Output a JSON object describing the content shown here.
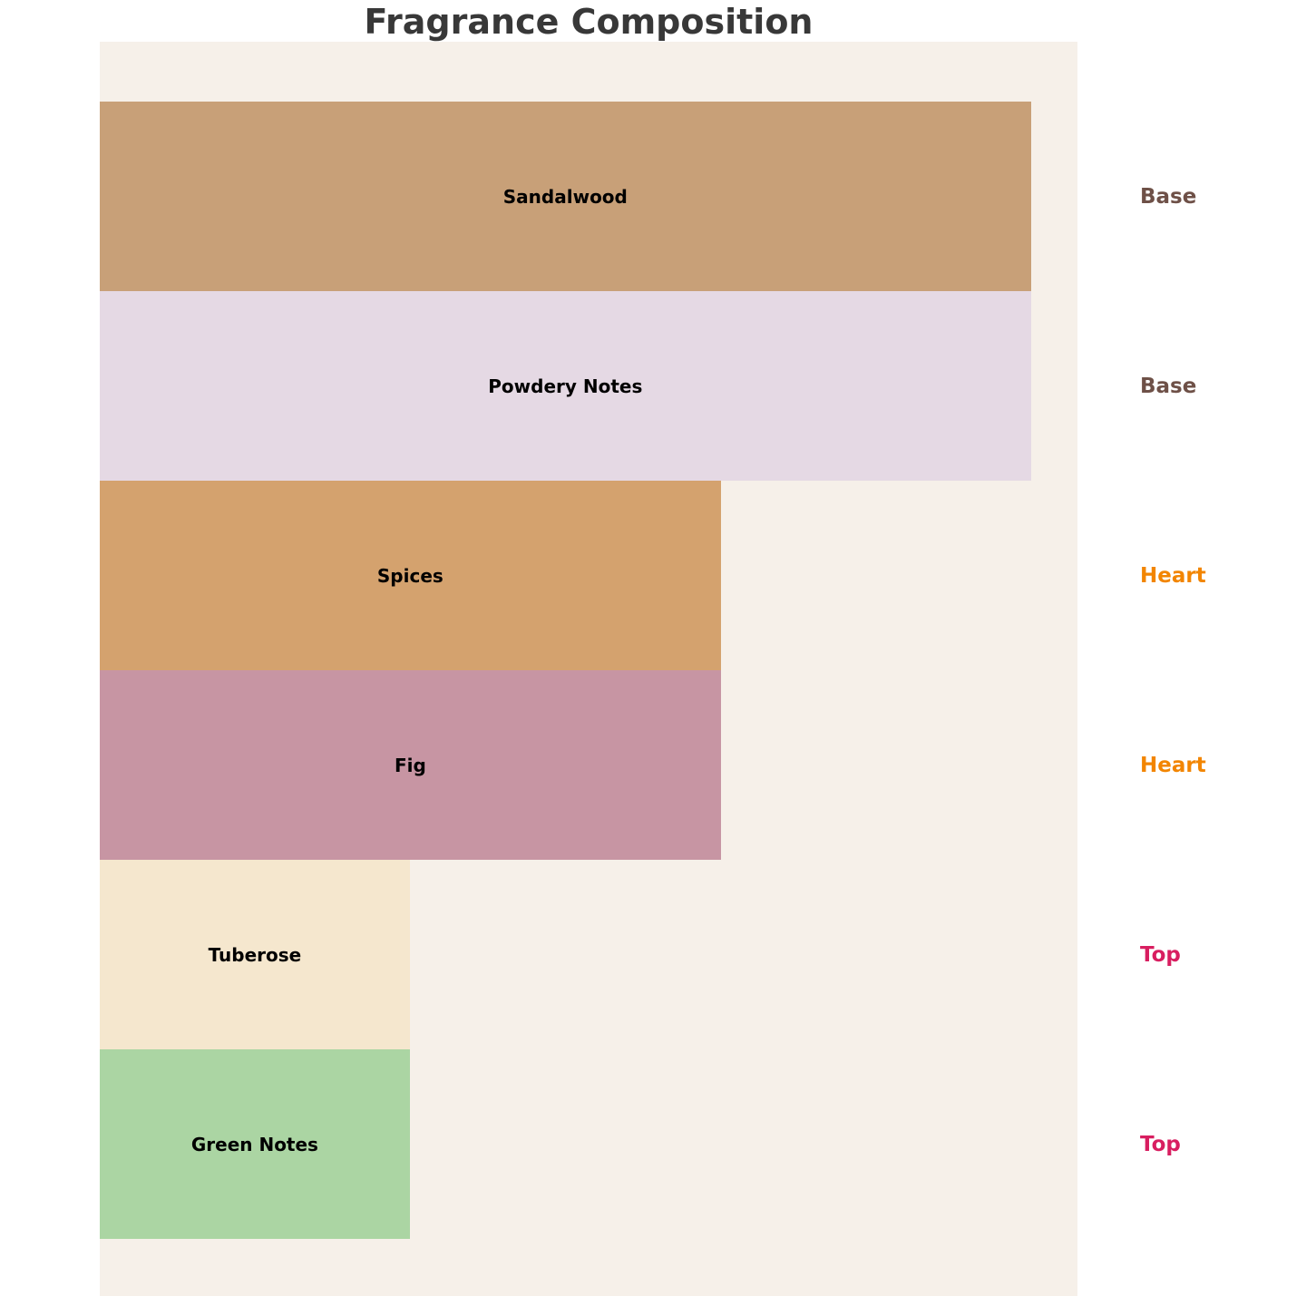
{
  "title": "Fragrance Composition",
  "colors": {
    "page_background": "#FFFFFF",
    "plot_background": "#F6F0E9",
    "title_text": "#383838",
    "bar_label_text": "#000000"
  },
  "chart_data": {
    "type": "bar",
    "orientation": "horizontal",
    "title": "Fragrance Composition",
    "categories": [
      "Sandalwood",
      "Powdery Notes",
      "Spices",
      "Fig",
      "Tuberose",
      "Green Notes"
    ],
    "values": [
      1.0,
      1.0,
      0.667,
      0.667,
      0.333,
      0.333
    ],
    "series": [
      {
        "label": "Sandalwood",
        "group": "Base",
        "value": 1.0,
        "color": "#C8A078"
      },
      {
        "label": "Powdery Notes",
        "group": "Base",
        "value": 1.0,
        "color": "#E5D9E4"
      },
      {
        "label": "Spices",
        "group": "Heart",
        "value": 0.667,
        "color": "#D4A26E"
      },
      {
        "label": "Fig",
        "group": "Heart",
        "value": 0.667,
        "color": "#C795A3"
      },
      {
        "label": "Tuberose",
        "group": "Top",
        "value": 0.333,
        "color": "#F5E7CE"
      },
      {
        "label": "Green Notes",
        "group": "Top",
        "value": 0.333,
        "color": "#ABD5A3"
      }
    ],
    "group_labels": [
      "Base",
      "Base",
      "Heart",
      "Heart",
      "Top",
      "Top"
    ],
    "group_colors": {
      "Base": "#6E5047",
      "Heart": "#F28500",
      "Top": "#D81E60"
    },
    "xlim": [
      0,
      1.05
    ],
    "grid": false,
    "legend_position": "none",
    "bar_label_position": "center-inside",
    "group_label_position": "right-of-plot"
  }
}
